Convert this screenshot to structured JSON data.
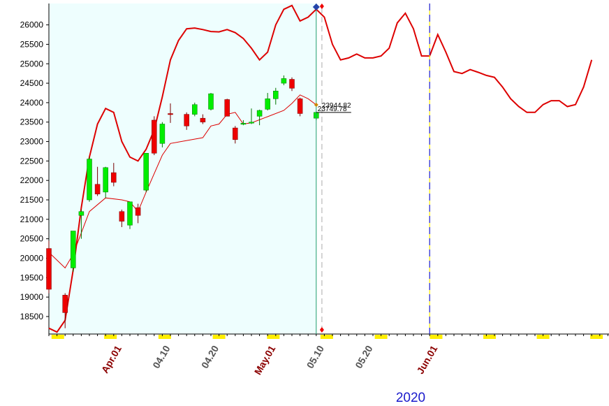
{
  "chart_data": {
    "type": "candlestick",
    "y_ticks": [
      18500,
      19000,
      19500,
      20000,
      20500,
      21000,
      21500,
      22000,
      22500,
      23000,
      23500,
      24000,
      24500,
      25000,
      25500,
      26000
    ],
    "ylim": [
      18050,
      26550
    ],
    "x_tick_labels": [
      {
        "label": "Apr.01",
        "index": 9,
        "style": "month"
      },
      {
        "label": "04.10",
        "index": 15,
        "style": "day"
      },
      {
        "label": "04.20",
        "index": 21,
        "style": "day"
      },
      {
        "label": "May.01",
        "index": 28,
        "style": "month"
      },
      {
        "label": "05.10",
        "index": 34,
        "style": "day"
      },
      {
        "label": "05.20",
        "index": 40,
        "style": "day"
      },
      {
        "label": "Jun.01",
        "index": 48,
        "style": "month"
      }
    ],
    "year_label": "2020",
    "candles": [
      {
        "i": 0,
        "open": 20250,
        "high": 20450,
        "low": 19100,
        "close": 19200
      },
      {
        "i": 2,
        "open": 19050,
        "high": 19100,
        "low": 18200,
        "close": 18600
      },
      {
        "i": 3,
        "open": 19750,
        "high": 20700,
        "low": 19650,
        "close": 20700
      },
      {
        "i": 4,
        "open": 21100,
        "high": 21250,
        "low": 20500,
        "close": 21200
      },
      {
        "i": 5,
        "open": 21500,
        "high": 22600,
        "low": 21450,
        "close": 22550
      },
      {
        "i": 6,
        "open": 21900,
        "high": 22350,
        "low": 21600,
        "close": 21650
      },
      {
        "i": 7,
        "open": 21700,
        "high": 22350,
        "low": 21550,
        "close": 22330
      },
      {
        "i": 8,
        "open": 22200,
        "high": 22450,
        "low": 21850,
        "close": 21950
      },
      {
        "i": 9,
        "open": 21200,
        "high": 21250,
        "low": 20800,
        "close": 20950
      },
      {
        "i": 10,
        "open": 20850,
        "high": 21450,
        "low": 20750,
        "close": 21450
      },
      {
        "i": 11,
        "open": 21300,
        "high": 21400,
        "low": 20900,
        "close": 21100
      },
      {
        "i": 12,
        "open": 21750,
        "high": 22700,
        "low": 21700,
        "close": 22700
      },
      {
        "i": 13,
        "open": 23550,
        "high": 23650,
        "low": 22650,
        "close": 22700
      },
      {
        "i": 14,
        "open": 22950,
        "high": 23500,
        "low": 22850,
        "close": 23450
      },
      {
        "i": 15,
        "open": 23720,
        "high": 23980,
        "low": 23480,
        "close": 23700
      },
      {
        "i": 17,
        "open": 23700,
        "high": 23750,
        "low": 23300,
        "close": 23400
      },
      {
        "i": 18,
        "open": 23700,
        "high": 24000,
        "low": 23650,
        "close": 23950
      },
      {
        "i": 19,
        "open": 23600,
        "high": 23700,
        "low": 23450,
        "close": 23500
      },
      {
        "i": 20,
        "open": 23830,
        "high": 24250,
        "low": 23800,
        "close": 24230
      },
      {
        "i": 22,
        "open": 24080,
        "high": 24100,
        "low": 23650,
        "close": 23650
      },
      {
        "i": 23,
        "open": 23350,
        "high": 23400,
        "low": 22950,
        "close": 23050
      },
      {
        "i": 24,
        "open": 23450,
        "high": 23550,
        "low": 23420,
        "close": 23470
      },
      {
        "i": 25,
        "open": 23500,
        "high": 23850,
        "low": 23450,
        "close": 23500
      },
      {
        "i": 26,
        "open": 23650,
        "high": 23820,
        "low": 23420,
        "close": 23800
      },
      {
        "i": 27,
        "open": 23830,
        "high": 24250,
        "low": 23800,
        "close": 24100
      },
      {
        "i": 28,
        "open": 24100,
        "high": 24380,
        "low": 23950,
        "close": 24300
      },
      {
        "i": 29,
        "open": 24500,
        "high": 24700,
        "low": 24450,
        "close": 24620
      },
      {
        "i": 30,
        "open": 24600,
        "high": 24650,
        "low": 24300,
        "close": 24370
      },
      {
        "i": 31,
        "open": 24100,
        "high": 24130,
        "low": 23650,
        "close": 23720
      },
      {
        "i": 33,
        "open": 23600,
        "high": 23750,
        "low": 23550,
        "close": 23749.78
      }
    ],
    "moving_average": [
      [
        0,
        20150
      ],
      [
        2,
        19750
      ],
      [
        3,
        20100
      ],
      [
        5,
        21200
      ],
      [
        7,
        21550
      ],
      [
        9,
        21500
      ],
      [
        10,
        21450
      ],
      [
        11,
        21200
      ],
      [
        12,
        21700
      ],
      [
        14,
        22650
      ],
      [
        15,
        22950
      ],
      [
        19,
        23100
      ],
      [
        20,
        23400
      ],
      [
        21,
        23450
      ],
      [
        22,
        23700
      ],
      [
        23,
        23750
      ],
      [
        24,
        23450
      ],
      [
        25,
        23480
      ],
      [
        26,
        23560
      ],
      [
        29,
        23800
      ],
      [
        30,
        23980
      ],
      [
        31,
        24200
      ],
      [
        32,
        24100
      ],
      [
        33,
        23944.82
      ]
    ],
    "upper_band": [
      [
        0,
        18200
      ],
      [
        1,
        18100
      ],
      [
        2,
        18400
      ],
      [
        3,
        19700
      ],
      [
        4,
        21300
      ],
      [
        5,
        22600
      ],
      [
        6,
        23450
      ],
      [
        7,
        23850
      ],
      [
        8,
        23750
      ],
      [
        9,
        23000
      ],
      [
        10,
        22600
      ],
      [
        11,
        22500
      ],
      [
        12,
        22800
      ],
      [
        13,
        23300
      ],
      [
        14,
        24150
      ],
      [
        15,
        25100
      ],
      [
        16,
        25600
      ],
      [
        17,
        25900
      ],
      [
        18,
        25920
      ],
      [
        19,
        25880
      ],
      [
        20,
        25830
      ],
      [
        21,
        25820
      ],
      [
        22,
        25880
      ],
      [
        23,
        25800
      ],
      [
        24,
        25650
      ],
      [
        25,
        25400
      ],
      [
        26,
        25100
      ],
      [
        27,
        25300
      ],
      [
        28,
        26000
      ],
      [
        29,
        26400
      ],
      [
        30,
        26500
      ],
      [
        31,
        26100
      ],
      [
        32,
        26200
      ],
      [
        33,
        26400
      ],
      [
        34,
        26200
      ],
      [
        35,
        25500
      ],
      [
        36,
        25100
      ],
      [
        37,
        25150
      ],
      [
        38,
        25250
      ],
      [
        39,
        25150
      ],
      [
        40,
        25150
      ],
      [
        41,
        25200
      ],
      [
        42,
        25400
      ],
      [
        43,
        26050
      ],
      [
        44,
        26300
      ],
      [
        45,
        25900
      ],
      [
        46,
        25200
      ],
      [
        47,
        25200
      ],
      [
        48,
        25750
      ],
      [
        49,
        25300
      ],
      [
        50,
        24800
      ],
      [
        51,
        24750
      ],
      [
        52,
        24850
      ],
      [
        53,
        24780
      ],
      [
        54,
        24700
      ],
      [
        55,
        24650
      ],
      [
        56,
        24400
      ],
      [
        57,
        24100
      ],
      [
        58,
        23900
      ],
      [
        59,
        23750
      ],
      [
        60,
        23750
      ],
      [
        61,
        23950
      ],
      [
        62,
        24050
      ],
      [
        63,
        24050
      ],
      [
        64,
        23900
      ],
      [
        65,
        23950
      ],
      [
        66,
        24400
      ],
      [
        67,
        25100
      ]
    ],
    "last_values": {
      "ma_label": "23944.82",
      "close_label": "23749.78"
    },
    "colors": {
      "up": "#00ee00",
      "down": "#ee0000",
      "lines": "#dd0000",
      "history_bg": "#eefefe",
      "cursor_line": "#1e9e6e",
      "forecast_line": "#1a1acc",
      "weekend_marker": "#ffee00",
      "month_label": "#8b0000",
      "day_label": "#555555",
      "year_label": "#1a1acc"
    }
  }
}
